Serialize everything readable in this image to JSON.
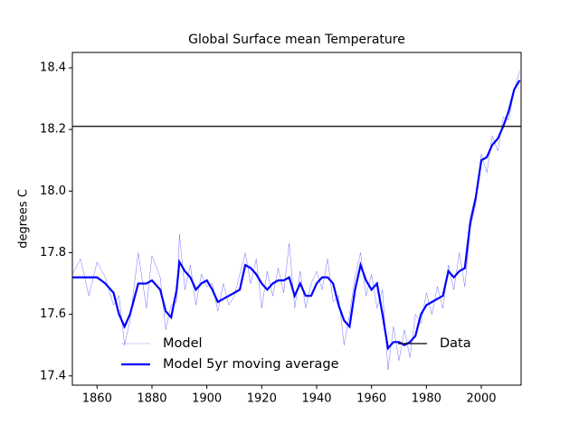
{
  "chart_data": {
    "type": "line",
    "title": "Global Surface mean Temperature",
    "y_label": "degrees C",
    "x": [
      1851,
      1854,
      1857,
      1860,
      1863,
      1866,
      1868,
      1870,
      1872,
      1875,
      1878,
      1880,
      1883,
      1885,
      1887,
      1889,
      1890,
      1892,
      1894,
      1896,
      1898,
      1900,
      1902,
      1904,
      1906,
      1908,
      1910,
      1912,
      1914,
      1916,
      1918,
      1920,
      1922,
      1924,
      1926,
      1928,
      1930,
      1932,
      1934,
      1936,
      1938,
      1940,
      1942,
      1944,
      1946,
      1948,
      1950,
      1952,
      1954,
      1956,
      1958,
      1960,
      1962,
      1964,
      1966,
      1968,
      1970,
      1972,
      1974,
      1976,
      1978,
      1980,
      1982,
      1984,
      1986,
      1988,
      1990,
      1992,
      1994,
      1996,
      1998,
      2000,
      2002,
      2004,
      2006,
      2008,
      2010,
      2012,
      2014
    ],
    "series": [
      {
        "name": "Model",
        "color": "#0000ff",
        "width": 0.4,
        "values": [
          17.73,
          17.78,
          17.66,
          17.77,
          17.72,
          17.63,
          17.66,
          17.5,
          17.58,
          17.8,
          17.62,
          17.79,
          17.72,
          17.55,
          17.63,
          17.64,
          17.86,
          17.68,
          17.76,
          17.63,
          17.73,
          17.69,
          17.7,
          17.61,
          17.7,
          17.63,
          17.66,
          17.73,
          17.8,
          17.7,
          17.78,
          17.62,
          17.74,
          17.66,
          17.75,
          17.67,
          17.83,
          17.62,
          17.74,
          17.62,
          17.7,
          17.74,
          17.68,
          17.78,
          17.64,
          17.66,
          17.5,
          17.6,
          17.72,
          17.8,
          17.66,
          17.73,
          17.62,
          17.68,
          17.42,
          17.56,
          17.45,
          17.55,
          17.46,
          17.6,
          17.57,
          17.67,
          17.6,
          17.69,
          17.62,
          17.76,
          17.68,
          17.8,
          17.69,
          17.88,
          17.96,
          18.12,
          18.06,
          18.18,
          18.13,
          18.24,
          18.23,
          18.33,
          18.39
        ]
      },
      {
        "name": "Model 5yr moving average",
        "color": "#0000ff",
        "width": 2.2,
        "values": [
          17.72,
          17.72,
          17.72,
          17.72,
          17.7,
          17.67,
          17.6,
          17.56,
          17.6,
          17.7,
          17.7,
          17.71,
          17.68,
          17.61,
          17.59,
          17.68,
          17.77,
          17.74,
          17.72,
          17.68,
          17.7,
          17.71,
          17.68,
          17.64,
          17.65,
          17.66,
          17.67,
          17.68,
          17.76,
          17.75,
          17.73,
          17.7,
          17.68,
          17.7,
          17.71,
          17.71,
          17.72,
          17.66,
          17.7,
          17.66,
          17.66,
          17.7,
          17.72,
          17.72,
          17.7,
          17.63,
          17.58,
          17.56,
          17.68,
          17.76,
          17.71,
          17.68,
          17.7,
          17.6,
          17.49,
          17.51,
          17.51,
          17.5,
          17.51,
          17.53,
          17.6,
          17.63,
          17.64,
          17.65,
          17.66,
          17.74,
          17.72,
          17.74,
          17.75,
          17.9,
          17.98,
          18.1,
          18.11,
          18.15,
          18.17,
          18.21,
          18.26,
          18.33,
          18.36
        ]
      }
    ],
    "hline": {
      "name": "Data",
      "value": 18.21,
      "color": "#000000"
    },
    "xlim": [
      1851,
      2014.5
    ],
    "ylim": [
      17.37,
      18.45
    ],
    "xticks": [
      1860,
      1880,
      1900,
      1920,
      1940,
      1960,
      1980,
      2000
    ],
    "yticks": [
      17.4,
      17.6,
      17.8,
      {
        "value": 18,
        "label": "18.0"
      },
      18.2,
      18.4
    ]
  }
}
